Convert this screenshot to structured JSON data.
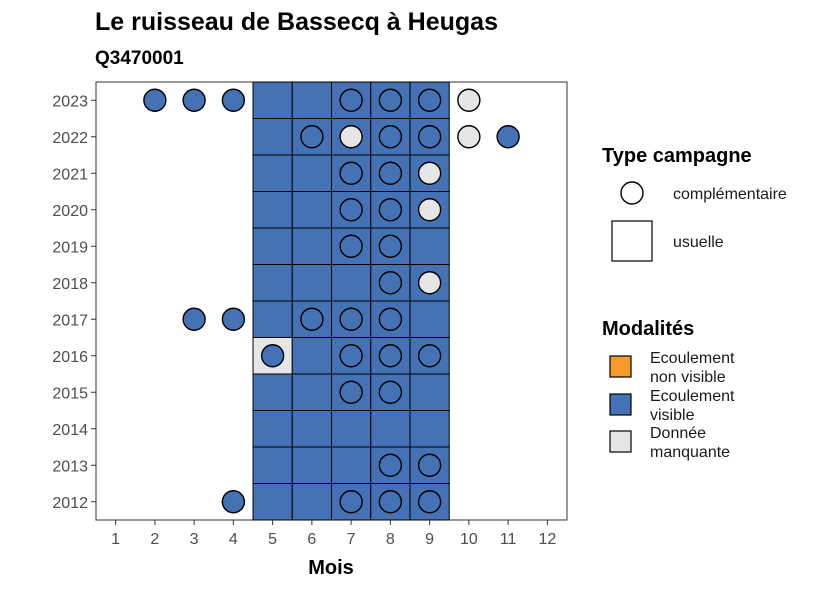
{
  "chart_data": {
    "type": "heatmap",
    "title": "Le ruisseau de Bassecq à Heugas",
    "subtitle": "Q3470001",
    "xlabel": "Mois",
    "ylabel": "",
    "x_ticks": [
      1,
      2,
      3,
      4,
      5,
      6,
      7,
      8,
      9,
      10,
      11,
      12
    ],
    "y_ticks": [
      2012,
      2013,
      2014,
      2015,
      2016,
      2017,
      2018,
      2019,
      2020,
      2021,
      2022,
      2023
    ],
    "xlim": [
      0.5,
      12.5
    ],
    "ylim": [
      2011.5,
      2023.5
    ],
    "grid": false,
    "legend_position": "right",
    "colors": {
      "Ecoulement non visible": "#F79A2D",
      "Ecoulement visible": "#4472B4",
      "Donnée manquante": "#E6E6E6"
    },
    "legends": [
      {
        "title": "Type campagne",
        "items": [
          {
            "label": "complémentaire",
            "shape": "circle"
          },
          {
            "label": "usuelle",
            "shape": "square"
          }
        ]
      },
      {
        "title": "Modalités",
        "items": [
          {
            "label_lines": [
              "Ecoulement",
              "non visible"
            ],
            "key": "Ecoulement non visible"
          },
          {
            "label_lines": [
              "Ecoulement",
              "visible"
            ],
            "key": "Ecoulement visible"
          },
          {
            "label_lines": [
              "Donnée",
              "manquante"
            ],
            "key": "Donnée manquante"
          }
        ]
      }
    ],
    "usuelle": [
      {
        "year": 2023,
        "month": 5,
        "modalite": "Ecoulement visible"
      },
      {
        "year": 2023,
        "month": 6,
        "modalite": "Ecoulement visible"
      },
      {
        "year": 2023,
        "month": 7,
        "modalite": "Ecoulement visible"
      },
      {
        "year": 2023,
        "month": 8,
        "modalite": "Ecoulement visible"
      },
      {
        "year": 2023,
        "month": 9,
        "modalite": "Ecoulement visible"
      },
      {
        "year": 2022,
        "month": 5,
        "modalite": "Ecoulement visible"
      },
      {
        "year": 2022,
        "month": 6,
        "modalite": "Ecoulement visible"
      },
      {
        "year": 2022,
        "month": 7,
        "modalite": "Ecoulement visible"
      },
      {
        "year": 2022,
        "month": 8,
        "modalite": "Ecoulement visible"
      },
      {
        "year": 2022,
        "month": 9,
        "modalite": "Ecoulement visible"
      },
      {
        "year": 2021,
        "month": 5,
        "modalite": "Ecoulement visible"
      },
      {
        "year": 2021,
        "month": 6,
        "modalite": "Ecoulement visible"
      },
      {
        "year": 2021,
        "month": 7,
        "modalite": "Ecoulement visible"
      },
      {
        "year": 2021,
        "month": 8,
        "modalite": "Ecoulement visible"
      },
      {
        "year": 2021,
        "month": 9,
        "modalite": "Ecoulement visible"
      },
      {
        "year": 2020,
        "month": 5,
        "modalite": "Ecoulement visible"
      },
      {
        "year": 2020,
        "month": 6,
        "modalite": "Ecoulement visible"
      },
      {
        "year": 2020,
        "month": 7,
        "modalite": "Ecoulement visible"
      },
      {
        "year": 2020,
        "month": 8,
        "modalite": "Ecoulement visible"
      },
      {
        "year": 2020,
        "month": 9,
        "modalite": "Ecoulement visible"
      },
      {
        "year": 2019,
        "month": 5,
        "modalite": "Ecoulement visible"
      },
      {
        "year": 2019,
        "month": 6,
        "modalite": "Ecoulement visible"
      },
      {
        "year": 2019,
        "month": 7,
        "modalite": "Ecoulement visible"
      },
      {
        "year": 2019,
        "month": 8,
        "modalite": "Ecoulement visible"
      },
      {
        "year": 2019,
        "month": 9,
        "modalite": "Ecoulement visible"
      },
      {
        "year": 2018,
        "month": 5,
        "modalite": "Ecoulement visible"
      },
      {
        "year": 2018,
        "month": 6,
        "modalite": "Ecoulement visible"
      },
      {
        "year": 2018,
        "month": 7,
        "modalite": "Ecoulement visible"
      },
      {
        "year": 2018,
        "month": 8,
        "modalite": "Ecoulement visible"
      },
      {
        "year": 2018,
        "month": 9,
        "modalite": "Ecoulement visible"
      },
      {
        "year": 2017,
        "month": 5,
        "modalite": "Ecoulement visible"
      },
      {
        "year": 2017,
        "month": 6,
        "modalite": "Ecoulement visible"
      },
      {
        "year": 2017,
        "month": 7,
        "modalite": "Ecoulement visible"
      },
      {
        "year": 2017,
        "month": 8,
        "modalite": "Ecoulement visible"
      },
      {
        "year": 2017,
        "month": 9,
        "modalite": "Ecoulement visible"
      },
      {
        "year": 2016,
        "month": 5,
        "modalite": "Donnée manquante"
      },
      {
        "year": 2016,
        "month": 6,
        "modalite": "Ecoulement visible"
      },
      {
        "year": 2016,
        "month": 7,
        "modalite": "Ecoulement visible"
      },
      {
        "year": 2016,
        "month": 8,
        "modalite": "Ecoulement visible"
      },
      {
        "year": 2016,
        "month": 9,
        "modalite": "Ecoulement visible"
      },
      {
        "year": 2015,
        "month": 5,
        "modalite": "Ecoulement visible"
      },
      {
        "year": 2015,
        "month": 6,
        "modalite": "Ecoulement visible"
      },
      {
        "year": 2015,
        "month": 7,
        "modalite": "Ecoulement visible"
      },
      {
        "year": 2015,
        "month": 8,
        "modalite": "Ecoulement visible"
      },
      {
        "year": 2015,
        "month": 9,
        "modalite": "Ecoulement visible"
      },
      {
        "year": 2014,
        "month": 5,
        "modalite": "Ecoulement visible"
      },
      {
        "year": 2014,
        "month": 6,
        "modalite": "Ecoulement visible"
      },
      {
        "year": 2014,
        "month": 7,
        "modalite": "Ecoulement visible"
      },
      {
        "year": 2014,
        "month": 8,
        "modalite": "Ecoulement visible"
      },
      {
        "year": 2014,
        "month": 9,
        "modalite": "Ecoulement visible"
      },
      {
        "year": 2013,
        "month": 5,
        "modalite": "Ecoulement visible"
      },
      {
        "year": 2013,
        "month": 6,
        "modalite": "Ecoulement visible"
      },
      {
        "year": 2013,
        "month": 7,
        "modalite": "Ecoulement visible"
      },
      {
        "year": 2013,
        "month": 8,
        "modalite": "Ecoulement visible"
      },
      {
        "year": 2013,
        "month": 9,
        "modalite": "Ecoulement visible"
      },
      {
        "year": 2012,
        "month": 5,
        "modalite": "Ecoulement visible"
      },
      {
        "year": 2012,
        "month": 6,
        "modalite": "Ecoulement visible"
      },
      {
        "year": 2012,
        "month": 7,
        "modalite": "Ecoulement visible"
      },
      {
        "year": 2012,
        "month": 8,
        "modalite": "Ecoulement visible"
      },
      {
        "year": 2012,
        "month": 9,
        "modalite": "Ecoulement visible"
      }
    ],
    "complementaire": [
      {
        "year": 2023,
        "month": 2,
        "modalite": "Ecoulement visible"
      },
      {
        "year": 2023,
        "month": 3,
        "modalite": "Ecoulement visible"
      },
      {
        "year": 2023,
        "month": 4,
        "modalite": "Ecoulement visible"
      },
      {
        "year": 2023,
        "month": 7,
        "modalite": "Ecoulement visible"
      },
      {
        "year": 2023,
        "month": 8,
        "modalite": "Ecoulement visible"
      },
      {
        "year": 2023,
        "month": 9,
        "modalite": "Ecoulement visible"
      },
      {
        "year": 2023,
        "month": 10,
        "modalite": "Donnée manquante"
      },
      {
        "year": 2022,
        "month": 6,
        "modalite": "Ecoulement visible"
      },
      {
        "year": 2022,
        "month": 7,
        "modalite": "Donnée manquante"
      },
      {
        "year": 2022,
        "month": 8,
        "modalite": "Ecoulement visible"
      },
      {
        "year": 2022,
        "month": 9,
        "modalite": "Ecoulement visible"
      },
      {
        "year": 2022,
        "month": 10,
        "modalite": "Donnée manquante"
      },
      {
        "year": 2022,
        "month": 11,
        "modalite": "Ecoulement visible"
      },
      {
        "year": 2021,
        "month": 7,
        "modalite": "Ecoulement visible"
      },
      {
        "year": 2021,
        "month": 8,
        "modalite": "Ecoulement visible"
      },
      {
        "year": 2021,
        "month": 9,
        "modalite": "Donnée manquante"
      },
      {
        "year": 2020,
        "month": 7,
        "modalite": "Ecoulement visible"
      },
      {
        "year": 2020,
        "month": 8,
        "modalite": "Ecoulement visible"
      },
      {
        "year": 2020,
        "month": 9,
        "modalite": "Donnée manquante"
      },
      {
        "year": 2019,
        "month": 7,
        "modalite": "Ecoulement visible"
      },
      {
        "year": 2019,
        "month": 8,
        "modalite": "Ecoulement visible"
      },
      {
        "year": 2018,
        "month": 8,
        "modalite": "Ecoulement visible"
      },
      {
        "year": 2018,
        "month": 9,
        "modalite": "Donnée manquante"
      },
      {
        "year": 2017,
        "month": 3,
        "modalite": "Ecoulement visible"
      },
      {
        "year": 2017,
        "month": 4,
        "modalite": "Ecoulement visible"
      },
      {
        "year": 2017,
        "month": 6,
        "modalite": "Ecoulement visible"
      },
      {
        "year": 2017,
        "month": 7,
        "modalite": "Ecoulement visible"
      },
      {
        "year": 2017,
        "month": 8,
        "modalite": "Ecoulement visible"
      },
      {
        "year": 2016,
        "month": 5,
        "modalite": "Ecoulement visible"
      },
      {
        "year": 2016,
        "month": 7,
        "modalite": "Ecoulement visible"
      },
      {
        "year": 2016,
        "month": 8,
        "modalite": "Ecoulement visible"
      },
      {
        "year": 2016,
        "month": 9,
        "modalite": "Ecoulement visible"
      },
      {
        "year": 2015,
        "month": 7,
        "modalite": "Ecoulement visible"
      },
      {
        "year": 2015,
        "month": 8,
        "modalite": "Ecoulement visible"
      },
      {
        "year": 2013,
        "month": 8,
        "modalite": "Ecoulement visible"
      },
      {
        "year": 2013,
        "month": 9,
        "modalite": "Ecoulement visible"
      },
      {
        "year": 2012,
        "month": 4,
        "modalite": "Ecoulement visible"
      },
      {
        "year": 2012,
        "month": 7,
        "modalite": "Ecoulement visible"
      },
      {
        "year": 2012,
        "month": 8,
        "modalite": "Ecoulement visible"
      },
      {
        "year": 2012,
        "month": 9,
        "modalite": "Ecoulement visible"
      }
    ]
  }
}
